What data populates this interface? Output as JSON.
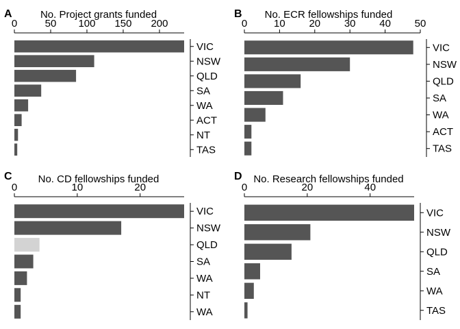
{
  "colors": {
    "bar": "#555555",
    "bar_highlight": "#d3d3d3",
    "axis": "#000000"
  },
  "chart_data": [
    {
      "type": "bar",
      "orientation": "horizontal",
      "panel": "A",
      "title": "No. Project grants funded",
      "categories": [
        "VIC",
        "NSW",
        "QLD",
        "SA",
        "WA",
        "ACT",
        "NT",
        "TAS"
      ],
      "values": [
        234,
        110,
        85,
        37,
        19,
        10,
        5,
        4
      ],
      "xlim": [
        0,
        234
      ],
      "xticks": [
        0,
        50,
        100,
        150,
        200
      ],
      "highlight": []
    },
    {
      "type": "bar",
      "orientation": "horizontal",
      "panel": "B",
      "title": "No. ECR fellowships funded",
      "categories": [
        "VIC",
        "NSW",
        "QLD",
        "SA",
        "WA",
        "ACT",
        "TAS"
      ],
      "values": [
        48,
        30,
        16,
        11,
        6,
        2,
        2
      ],
      "xlim": [
        0,
        50
      ],
      "xticks": [
        0,
        10,
        20,
        30,
        40,
        50
      ],
      "highlight": []
    },
    {
      "type": "bar",
      "orientation": "horizontal",
      "panel": "C",
      "title": "No. CD fellowships funded",
      "categories": [
        "VIC",
        "NSW",
        "QLD",
        "SA",
        "WA",
        "NT",
        "WA"
      ],
      "values": [
        27,
        17,
        4,
        3,
        2,
        1,
        1
      ],
      "xlim": [
        0,
        27
      ],
      "xticks": [
        0,
        10,
        20
      ],
      "highlight": [
        2
      ]
    },
    {
      "type": "bar",
      "orientation": "horizontal",
      "panel": "D",
      "title": "No. Research fellowships funded",
      "categories": [
        "VIC",
        "NSW",
        "QLD",
        "SA",
        "WA",
        "TAS"
      ],
      "values": [
        54,
        21,
        15,
        5,
        3,
        1
      ],
      "xlim": [
        0,
        54
      ],
      "xticks": [
        0,
        20,
        40
      ],
      "highlight": []
    }
  ]
}
